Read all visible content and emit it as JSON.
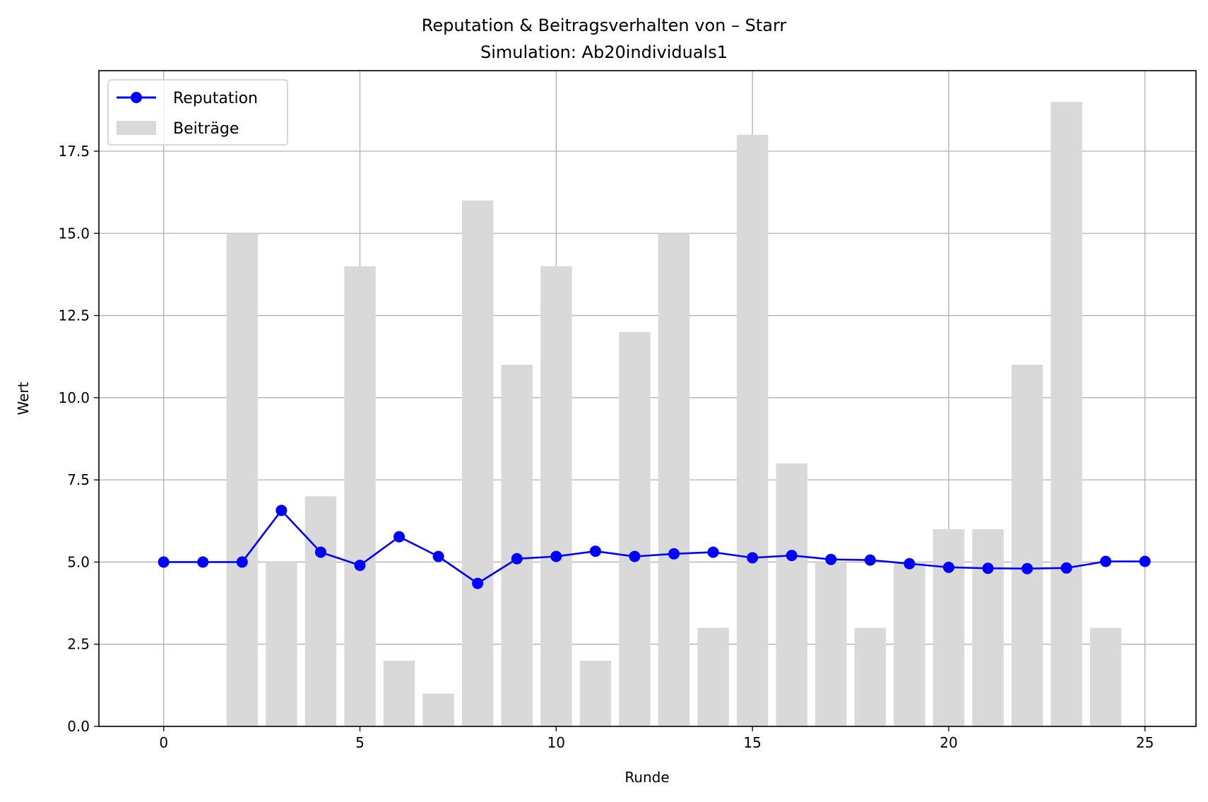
{
  "chart_data": {
    "type": "bar+line",
    "title": "Reputation & Beitragsverhalten von – Starr",
    "subtitle": "Simulation: Ab20individuals1",
    "xlabel": "Runde",
    "ylabel": "Wert",
    "xlim": [
      -1.65,
      26.3
    ],
    "ylim": [
      0,
      19.95
    ],
    "xticks": [
      0,
      5,
      10,
      15,
      20,
      25
    ],
    "yticks": [
      0,
      2.5,
      5,
      7.5,
      10,
      12.5,
      15,
      17.5
    ],
    "ytick_labels": [
      "0.0",
      "2.5",
      "5.0",
      "7.5",
      "10.0",
      "12.5",
      "15.0",
      "17.5"
    ],
    "grid": true,
    "legend_position": "top-left",
    "series": [
      {
        "name": "Reputation",
        "type": "line",
        "marker": "circle",
        "color": "#0000ff",
        "x": [
          0,
          1,
          2,
          3,
          4,
          5,
          6,
          7,
          8,
          9,
          10,
          11,
          12,
          13,
          14,
          15,
          16,
          17,
          18,
          19,
          20,
          21,
          22,
          23,
          24,
          25
        ],
        "values": [
          5.0,
          5.0,
          5.0,
          6.57,
          5.3,
          4.9,
          5.77,
          5.17,
          4.35,
          5.1,
          5.17,
          5.33,
          5.17,
          5.25,
          5.3,
          5.13,
          5.2,
          5.08,
          5.06,
          4.95,
          4.84,
          4.81,
          4.8,
          4.82,
          5.02,
          5.02
        ]
      },
      {
        "name": "Beiträge",
        "type": "bar",
        "color": "#d9d9d9",
        "x": [
          0,
          1,
          2,
          3,
          4,
          5,
          6,
          7,
          8,
          9,
          10,
          11,
          12,
          13,
          14,
          15,
          16,
          17,
          18,
          19,
          20,
          21,
          22,
          23,
          24,
          25
        ],
        "values": [
          0,
          0,
          15,
          5,
          7,
          14,
          2,
          1,
          16,
          11,
          14,
          2,
          12,
          15,
          3,
          18,
          8,
          5,
          3,
          5,
          6,
          6,
          11,
          19,
          3,
          0
        ]
      }
    ]
  }
}
